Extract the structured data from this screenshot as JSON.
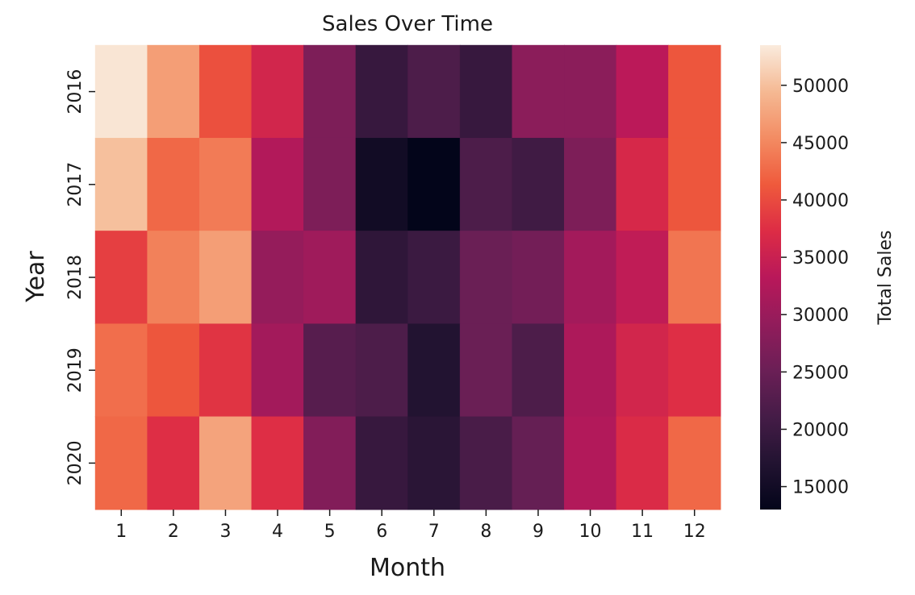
{
  "chart_data": {
    "type": "heatmap",
    "title": "Sales Over Time",
    "xlabel": "Month",
    "ylabel": "Year",
    "x_categories": [
      "1",
      "2",
      "3",
      "4",
      "5",
      "6",
      "7",
      "8",
      "9",
      "10",
      "11",
      "12"
    ],
    "y_categories": [
      "2016",
      "2017",
      "2018",
      "2019",
      "2020"
    ],
    "values": [
      [
        53000,
        47000,
        40500,
        36000,
        27000,
        19500,
        22000,
        19500,
        28500,
        28500,
        33500,
        41000
      ],
      [
        50000,
        42500,
        44000,
        32500,
        27000,
        15000,
        13000,
        22000,
        20500,
        27000,
        36500,
        41000
      ],
      [
        39000,
        44500,
        47000,
        29500,
        30500,
        18500,
        20000,
        25000,
        26000,
        31000,
        34000,
        43500
      ],
      [
        43000,
        41000,
        38000,
        31000,
        23000,
        22000,
        17000,
        25000,
        22000,
        32000,
        36000,
        37500
      ],
      [
        42500,
        37500,
        47500,
        37500,
        27500,
        19500,
        18000,
        21500,
        24500,
        32500,
        37000,
        42500
      ]
    ],
    "colorbar": {
      "label": "Total Sales",
      "vmin": 13000,
      "vmax": 53500,
      "ticks": [
        "15000",
        "20000",
        "25000",
        "30000",
        "35000",
        "40000",
        "45000",
        "50000"
      ]
    }
  }
}
